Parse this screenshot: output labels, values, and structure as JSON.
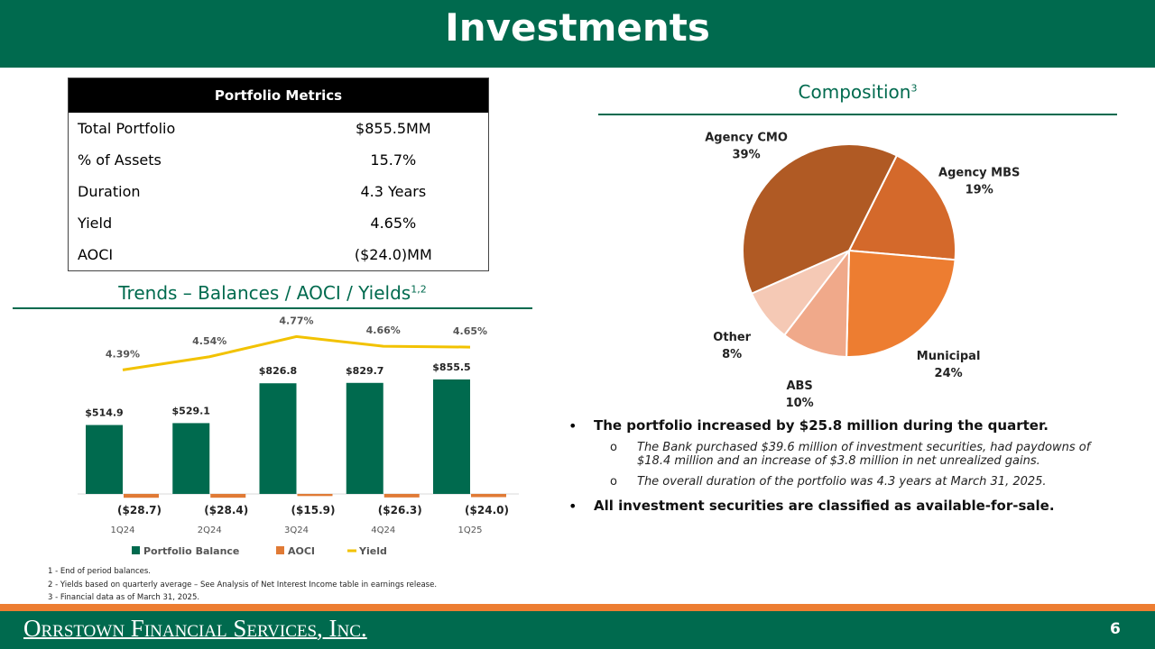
{
  "title": "Investments",
  "table": {
    "header": "Portfolio Metrics",
    "rows": [
      [
        "Total Portfolio",
        "$855.5MM"
      ],
      [
        "% of Assets",
        "15.7%"
      ],
      [
        "Duration",
        "4.3 Years"
      ],
      [
        "Yield",
        "4.65%"
      ],
      [
        "AOCI",
        "($24.0)MM"
      ]
    ]
  },
  "chart_data": [
    {
      "type": "bar-line",
      "title": "Trends – Balances / AOCI / Yields",
      "title_note": "1,2",
      "categories": [
        "1Q24",
        "2Q24",
        "3Q24",
        "4Q24",
        "1Q25"
      ],
      "series": [
        {
          "name": "Portfolio Balance",
          "color": "#006a4e",
          "values": [
            514.9,
            529.1,
            826.8,
            829.7,
            855.5
          ],
          "value_labels": [
            "$514.9",
            "$529.1",
            "$826.8",
            "$829.7",
            "$855.5"
          ]
        },
        {
          "name": "AOCI",
          "color": "#e07a35",
          "values": [
            -28.7,
            -28.4,
            -15.9,
            -26.3,
            -24.0
          ],
          "value_labels": [
            "($28.7)",
            "($28.4)",
            "($15.9)",
            "($26.3)",
            "($24.0)"
          ]
        },
        {
          "name": "Yield",
          "color": "#f2c200",
          "axis": "y2",
          "values": [
            4.39,
            4.54,
            4.77,
            4.66,
            4.65
          ],
          "value_labels": [
            "4.39%",
            "4.54%",
            "4.77%",
            "4.66%",
            "4.65%"
          ]
        }
      ],
      "ylim": [
        -100,
        1000
      ],
      "y2lim": [
        3.5,
        5.0
      ]
    },
    {
      "type": "pie",
      "title": "Composition",
      "title_note": "3",
      "categories": [
        "Agency MBS",
        "Municipal",
        "ABS",
        "Other",
        "Agency CMO"
      ],
      "values": [
        19,
        24,
        10,
        8,
        39
      ],
      "value_labels": [
        "19%",
        "24%",
        "10%",
        "8%",
        "39%"
      ],
      "colors": [
        "#d4692b",
        "#ed7d31",
        "#f0a98a",
        "#f5c9b5",
        "#b05a24"
      ]
    }
  ],
  "bullets": [
    {
      "text": "The portfolio increased by $25.8 million during the quarter.",
      "sub": [
        "The Bank purchased $39.6 million of investment securities, had paydowns of $18.4 million and an increase of $3.8 million in net unrealized gains.",
        "The overall duration of the portfolio was 4.3 years at March 31, 2025."
      ]
    },
    {
      "text": "All investment securities are classified as available-for-sale.",
      "sub": []
    }
  ],
  "footnotes": [
    "1 - End of period balances.",
    "2 - Yields based on quarterly average – See Analysis of Net Interest Income table in earnings release.",
    "3 - Financial data as of March 31, 2025."
  ],
  "footer": "Orrstown Financial Services, Inc.",
  "page_number": "6"
}
